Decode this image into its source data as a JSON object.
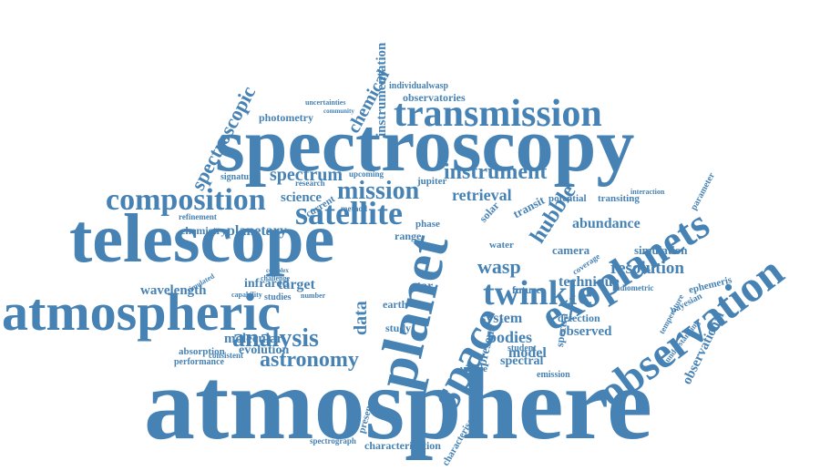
{
  "colors": {
    "word": "#4682b4",
    "background": "#ffffff"
  },
  "words": [
    "atmosphere",
    "spectroscopy",
    "telescope",
    "atmospheric",
    "planet",
    "space",
    "observation",
    "exoplanets",
    "transmission",
    "composition",
    "satellite",
    "twinkle",
    "mission",
    "analysis",
    "astronomy",
    "instrument",
    "wasp",
    "hubble",
    "spectroscopic",
    "chemical",
    "instrumentation",
    "observational",
    "spectrum",
    "retrieval",
    "data",
    "resolution",
    "technique",
    "bodies",
    "system",
    "observed",
    "detection",
    "model",
    "spectral",
    "present",
    "spectra",
    "molecular",
    "evolution",
    "infrared",
    "target",
    "planetary",
    "wavelength",
    "abundance",
    "simulation",
    "photometry",
    "observatories",
    "individualwasp",
    "uncertainties",
    "community",
    "science",
    "research",
    "jupiter",
    "upcoming",
    "chemistry",
    "refinement",
    "signature",
    "absorption",
    "performance",
    "consistent",
    "characterization",
    "characterisation",
    "spectrograph",
    "presence",
    "emission",
    "visible",
    "student",
    "ephemeris",
    "bayesian",
    "parameter",
    "temperature",
    "understanding",
    "radiometric",
    "camera",
    "future",
    "earth",
    "study",
    "phase",
    "range",
    "star",
    "transit",
    "solar",
    "water",
    "transiting",
    "potential",
    "interaction",
    "coverage",
    "simulated",
    "studies",
    "challenge",
    "capability",
    "current",
    "method",
    "number",
    "complex"
  ]
}
